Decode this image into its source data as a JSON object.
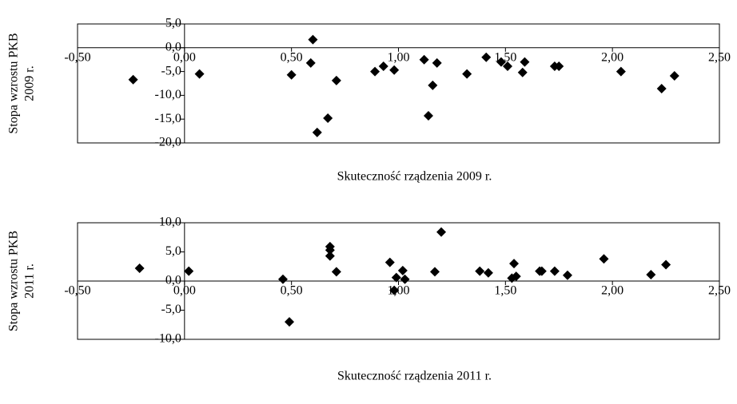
{
  "chart_data": [
    {
      "type": "scatter",
      "xlabel": "Skuteczność rządzenia 2009 r.",
      "ylabel": [
        "Stopa wzrostu PKB",
        "2009 r."
      ],
      "x": [
        -0.24,
        0.07,
        0.5,
        0.6,
        0.59,
        0.62,
        0.67,
        0.71,
        0.89,
        0.93,
        0.98,
        1.12,
        1.18,
        1.16,
        1.14,
        1.32,
        1.41,
        1.48,
        1.51,
        1.58,
        1.59,
        1.73,
        1.75,
        2.04,
        2.23,
        2.29
      ],
      "values": [
        -6.7,
        -5.5,
        -5.7,
        1.7,
        -3.2,
        -17.8,
        -14.8,
        -6.9,
        -5.0,
        -3.9,
        -4.7,
        -2.5,
        -3.2,
        -7.9,
        -14.3,
        -5.5,
        -2.0,
        -3.0,
        -3.9,
        -5.2,
        -3.0,
        -3.9,
        -3.9,
        -5.0,
        -8.6,
        -5.9
      ],
      "color": "#000000",
      "xlim": [
        -0.5,
        2.5
      ],
      "xticks": [
        {
          "value": -0.5,
          "label": "-0,50"
        },
        {
          "value": 0,
          "label": "0,00"
        },
        {
          "value": 0.5,
          "label": "0,50"
        },
        {
          "value": 1,
          "label": "1,00"
        },
        {
          "value": 1.5,
          "label": "1,50"
        },
        {
          "value": 2,
          "label": "2,00"
        },
        {
          "value": 2.5,
          "label": "2,50"
        }
      ],
      "ylim": [
        -20,
        5
      ],
      "yticks": [
        {
          "value": 5,
          "label": "5,0"
        },
        {
          "value": 0,
          "label": "0,0"
        },
        {
          "value": -5,
          "label": "-5,0"
        },
        {
          "value": -10,
          "label": "-10,0"
        },
        {
          "value": -15,
          "label": "-15,0"
        },
        {
          "value": -20,
          "label": "-20,0"
        }
      ]
    },
    {
      "type": "scatter",
      "xlabel": "Skuteczność rządzenia 2011 r.",
      "ylabel": [
        "Stopa wzrostu PKB",
        "2011 r."
      ],
      "x": [
        -0.21,
        0.02,
        0.46,
        0.49,
        0.68,
        0.68,
        0.68,
        0.71,
        0.96,
        0.98,
        0.99,
        1.02,
        1.03,
        1.17,
        1.2,
        1.38,
        1.42,
        1.54,
        1.53,
        1.55,
        1.66,
        1.67,
        1.73,
        1.79,
        1.96,
        2.18,
        2.25
      ],
      "values": [
        2.2,
        1.7,
        0.3,
        -7.0,
        5.9,
        5.3,
        4.3,
        1.6,
        3.2,
        -1.6,
        0.6,
        1.8,
        0.3,
        1.6,
        8.4,
        1.7,
        1.4,
        3.0,
        0.5,
        0.8,
        1.7,
        1.7,
        1.7,
        1.0,
        3.8,
        1.1,
        2.8
      ],
      "color": "#000000",
      "xlim": [
        -0.5,
        2.5
      ],
      "xticks": [
        {
          "value": -0.5,
          "label": "-0,50"
        },
        {
          "value": 0,
          "label": "0,00"
        },
        {
          "value": 0.5,
          "label": "0,50"
        },
        {
          "value": 1,
          "label": "1,00"
        },
        {
          "value": 1.5,
          "label": "1,50"
        },
        {
          "value": 2,
          "label": "2,00"
        },
        {
          "value": 2.5,
          "label": "2,50"
        }
      ],
      "ylim": [
        -10,
        10
      ],
      "yticks": [
        {
          "value": 10,
          "label": "10,0"
        },
        {
          "value": 5,
          "label": "5,0"
        },
        {
          "value": 0,
          "label": "0,0"
        },
        {
          "value": -5,
          "label": "-5,0"
        },
        {
          "value": -10,
          "label": "-10,0"
        }
      ]
    }
  ]
}
